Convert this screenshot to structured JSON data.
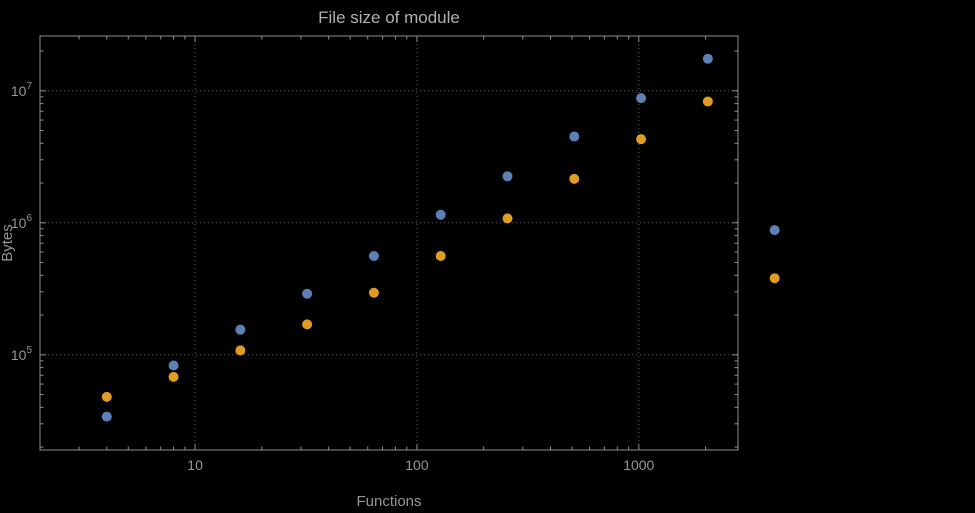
{
  "chart_data": {
    "type": "scatter",
    "title": "File size of module",
    "xlabel": "Functions",
    "ylabel": "Bytes",
    "xscale": "log",
    "yscale": "log",
    "xlim": [
      2,
      2800
    ],
    "ylim": [
      19000,
      26000000
    ],
    "grid": true,
    "legend": "none",
    "plot_range_clipping": false,
    "x": [
      4,
      8,
      16,
      32,
      64,
      128,
      256,
      512,
      1024,
      2048,
      4096
    ],
    "x_ticks": [
      10,
      100,
      1000
    ],
    "x_tick_labels": [
      "10",
      "100",
      "1000"
    ],
    "y_ticks": [
      100000,
      1000000,
      10000000
    ],
    "y_tick_exponents": [
      5,
      6,
      7
    ],
    "series": [
      {
        "name": "series-1-blue",
        "color": "#5E81B5",
        "values": [
          34000,
          83000,
          155000,
          290000,
          560000,
          1150000,
          2250000,
          4500000,
          8800000,
          17500000,
          880000
        ]
      },
      {
        "name": "series-2-orange",
        "color": "#E19C24",
        "values": [
          48000,
          68000,
          108000,
          170000,
          295000,
          560000,
          1080000,
          2150000,
          4300000,
          8300000,
          380000
        ]
      }
    ],
    "colors": {
      "background": "#000000",
      "frame": "#8e8e8e",
      "grid": "#5d5d5d",
      "text": "#959595",
      "title": "#b0b0b0"
    }
  }
}
